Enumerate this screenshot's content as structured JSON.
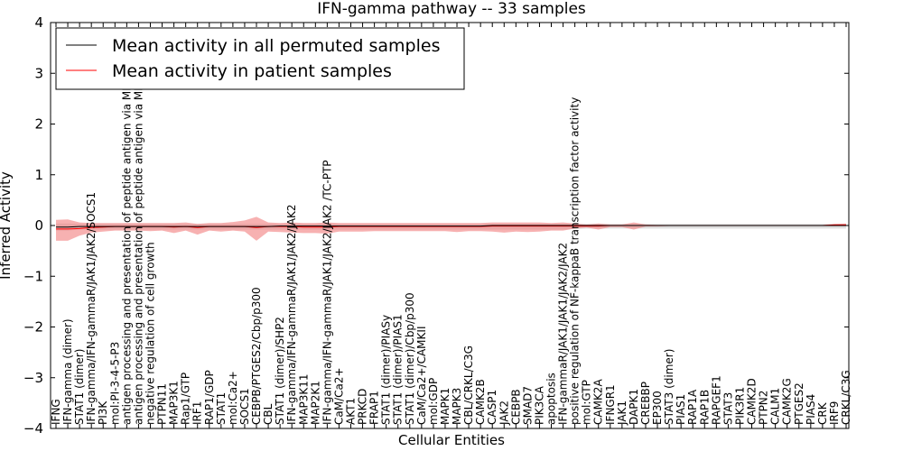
{
  "chart_data": {
    "type": "line",
    "title": "IFN-gamma pathway -- 33 samples",
    "xlabel": "Cellular Entities",
    "ylabel": "Inferred Activity",
    "ylim": [
      -4,
      4
    ],
    "yticks": [
      -4,
      -3,
      -2,
      -1,
      0,
      1,
      2,
      3,
      4
    ],
    "ytick_labels": [
      "−4",
      "−3",
      "−2",
      "−1",
      "0",
      "1",
      "2",
      "3",
      "4"
    ],
    "legend_position": "top-left",
    "categories": [
      "IFNG",
      "IFN-gamma (dimer)",
      "STAT1 (dimer)",
      "IFN-gamma/IFN-gammaR/JAK1/JAK2/SOCS1",
      "PI3K",
      "mol:PI-3-4-5-P3",
      "antigen processing and presentation of peptide antigen via MHC class I",
      "antigen processing and presentation of peptide antigen via MHC class II",
      "negative regulation of cell growth",
      "PTPN11",
      "MAP3K1",
      "Rap1/GTP",
      "IRF1",
      "RAP1/GDP",
      "STAT1",
      "mol:Ca2+",
      "SOCS1",
      "CEBPB/PTGES2/Cbp/p300",
      "CBL",
      "STAT1 (dimer)/SHP2",
      "IFN-gamma/IFN-gammaR/JAK1/JAK2/JAK2",
      "MAP3K11",
      "MAP2K1",
      "IFN-gamma/IFN-gammaR/JAK1/JAK2/JAK2 /TC-PTP",
      "CaM/Ca2+",
      "AKT1",
      "PRKCD",
      "FRAP1",
      "STAT1 (dimer)/PIASy",
      "STAT1 (dimer)/PIAS1",
      "STAT1 (dimer)/Cbp/p300",
      "CaM/Ca2+/CAMKII",
      "mol:GDP",
      "MAPK1",
      "MAPK3",
      "CBL/CRKL/C3G",
      "CAMK2B",
      "CASP1",
      "JAK2",
      "CEBPB",
      "SMAD7",
      "PIK3CA",
      "apoptosis",
      "IFN-gammaR/JAK1/JAK1/JAK2/JAK2",
      "positive regulation of NF-kappaB transcription factor activity",
      "mol:GTP",
      "CAMK2A",
      "IFNGR1",
      "JAK1",
      "DAPK1",
      "CREBBP",
      "EP300",
      "STAT3 (dimer)",
      "PIAS1",
      "RAP1A",
      "RAP1B",
      "RAPGEF1",
      "STAT3",
      "PIK3R1",
      "CAMK2D",
      "PTPN2",
      "CALM1",
      "CAMK2G",
      "PTGES2",
      "PIAS4",
      "CRK",
      "IRF9",
      "CRKL/C3G"
    ],
    "series": [
      {
        "name": "Mean activity in all permuted samples",
        "color": "#000000",
        "values": [
          -0.03,
          -0.03,
          -0.02,
          -0.02,
          -0.02,
          -0.02,
          -0.02,
          -0.02,
          -0.02,
          -0.02,
          -0.02,
          -0.02,
          -0.02,
          -0.02,
          -0.02,
          -0.02,
          -0.02,
          -0.02,
          -0.02,
          -0.01,
          -0.01,
          -0.01,
          -0.01,
          -0.01,
          -0.01,
          -0.01,
          -0.01,
          -0.01,
          -0.01,
          -0.01,
          -0.01,
          -0.01,
          -0.01,
          -0.01,
          -0.01,
          -0.01,
          -0.01,
          0,
          0,
          0,
          0,
          0,
          0,
          0,
          0,
          0,
          0,
          0,
          0,
          0,
          0,
          0,
          0,
          0,
          0,
          0,
          0,
          0,
          0,
          0,
          0,
          0,
          0,
          0,
          0,
          0,
          0,
          0
        ],
        "band_upper": [
          0.04,
          0.04,
          0.03,
          0.03,
          0.03,
          0.03,
          0.03,
          0.03,
          0.03,
          0.03,
          0.03,
          0.03,
          0.03,
          0.03,
          0.03,
          0.03,
          0.03,
          0.03,
          0.03,
          0.03,
          0.03,
          0.03,
          0.03,
          0.03,
          0.03,
          0.03,
          0.03,
          0.03,
          0.03,
          0.03,
          0.03,
          0.03,
          0.03,
          0.03,
          0.03,
          0.03,
          0.03,
          0.03,
          0.03,
          0.03,
          0.03,
          0.03,
          0.03,
          0.03,
          0.03,
          0.03,
          0.03,
          0.03,
          0.03,
          0.03,
          0.03,
          0.03,
          0.03,
          0.03,
          0.03,
          0.03,
          0.03,
          0.03,
          0.03,
          0.03,
          0.03,
          0.03,
          0.03,
          0.03,
          0.03,
          0.03,
          0.03,
          0.03
        ],
        "band_lower": [
          -0.1,
          -0.1,
          -0.08,
          -0.08,
          -0.08,
          -0.08,
          -0.08,
          -0.08,
          -0.08,
          -0.08,
          -0.08,
          -0.08,
          -0.08,
          -0.08,
          -0.08,
          -0.08,
          -0.08,
          -0.08,
          -0.08,
          -0.08,
          -0.08,
          -0.08,
          -0.08,
          -0.08,
          -0.08,
          -0.08,
          -0.08,
          -0.08,
          -0.08,
          -0.08,
          -0.08,
          -0.08,
          -0.08,
          -0.08,
          -0.08,
          -0.08,
          -0.08,
          -0.08,
          -0.08,
          -0.08,
          -0.08,
          -0.08,
          -0.08,
          -0.08,
          -0.07,
          -0.06,
          -0.06,
          -0.06,
          -0.06,
          -0.06,
          -0.06,
          -0.06,
          -0.06,
          -0.06,
          -0.06,
          -0.06,
          -0.06,
          -0.06,
          -0.06,
          -0.06,
          -0.06,
          -0.06,
          -0.06,
          -0.06,
          -0.06,
          -0.06,
          -0.06,
          -0.06
        ]
      },
      {
        "name": "Mean activity in patient samples",
        "color": "#ff0000",
        "values": [
          -0.07,
          -0.07,
          -0.06,
          -0.04,
          -0.03,
          -0.02,
          -0.02,
          -0.02,
          -0.02,
          -0.02,
          -0.03,
          -0.02,
          -0.04,
          -0.02,
          -0.02,
          -0.02,
          -0.02,
          -0.04,
          -0.02,
          -0.02,
          -0.02,
          -0.03,
          -0.03,
          -0.03,
          -0.02,
          -0.02,
          -0.02,
          -0.02,
          -0.02,
          -0.02,
          -0.02,
          -0.02,
          -0.02,
          -0.02,
          -0.02,
          -0.02,
          -0.02,
          -0.01,
          -0.01,
          -0.01,
          -0.01,
          -0.01,
          -0.01,
          -0.01,
          -0.01,
          -0.01,
          -0.01,
          0,
          0,
          0,
          0,
          0,
          0,
          0,
          0,
          0,
          0,
          0,
          0,
          0,
          0,
          0,
          0,
          0,
          0,
          0,
          0.01,
          0.01
        ],
        "band_upper": [
          0.11,
          0.12,
          0.06,
          0.05,
          0.05,
          0.05,
          0.05,
          0.05,
          0.05,
          0.05,
          0.05,
          0.06,
          0.03,
          0.05,
          0.05,
          0.07,
          0.1,
          0.17,
          0.06,
          0.05,
          0.06,
          0.05,
          0.05,
          0.06,
          0.05,
          0.05,
          0.05,
          0.05,
          0.05,
          0.05,
          0.05,
          0.05,
          0.05,
          0.05,
          0.05,
          0.05,
          0.05,
          0.06,
          0.06,
          0.06,
          0.06,
          0.06,
          0.05,
          0.06,
          0.04,
          0.02,
          0.04,
          0.02,
          0.02,
          0.06,
          0.02,
          0.01,
          0.01,
          0.01,
          0.01,
          0.01,
          0.01,
          0.01,
          0.01,
          0.01,
          0.01,
          0.01,
          0.01,
          0.01,
          0.01,
          0.01,
          0.03,
          0.04
        ],
        "band_lower": [
          -0.3,
          -0.3,
          -0.2,
          -0.14,
          -0.12,
          -0.1,
          -0.1,
          -0.1,
          -0.11,
          -0.1,
          -0.15,
          -0.1,
          -0.18,
          -0.1,
          -0.12,
          -0.1,
          -0.12,
          -0.3,
          -0.12,
          -0.13,
          -0.14,
          -0.15,
          -0.15,
          -0.16,
          -0.12,
          -0.12,
          -0.12,
          -0.11,
          -0.11,
          -0.11,
          -0.11,
          -0.11,
          -0.11,
          -0.11,
          -0.13,
          -0.11,
          -0.11,
          -0.12,
          -0.14,
          -0.12,
          -0.13,
          -0.12,
          -0.1,
          -0.1,
          -0.06,
          -0.04,
          -0.08,
          -0.03,
          -0.03,
          -0.08,
          -0.02,
          -0.02,
          -0.01,
          -0.01,
          -0.01,
          -0.01,
          -0.01,
          -0.01,
          -0.01,
          -0.01,
          -0.01,
          -0.01,
          -0.01,
          -0.01,
          -0.01,
          -0.01,
          -0.01,
          -0.01
        ]
      }
    ]
  }
}
